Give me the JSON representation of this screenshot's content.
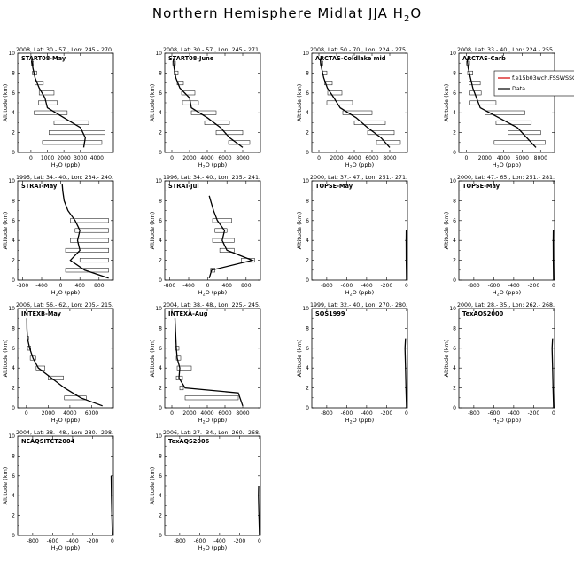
{
  "figure": {
    "title": "Northern Hemisphere Midlat JJA H",
    "title_sub": "2",
    "title_end": "O"
  },
  "chart_data": [
    {
      "type": "line",
      "header": "2008, Lat: 30.- 57., Lon: 245.- 270.",
      "label": "START08-May",
      "xlabel": "H2O (ppb)",
      "ylabel": "Altitude (km)",
      "xlim": [
        -800,
        5000
      ],
      "xticks": [
        0,
        1000,
        2000,
        3000,
        4000
      ],
      "ylim": [
        0,
        10
      ],
      "yticks": [
        0,
        2,
        4,
        6,
        8,
        10
      ],
      "profile": [
        [
          3200,
          0.5
        ],
        [
          3300,
          1.5
        ],
        [
          3000,
          2.5
        ],
        [
          2000,
          3.5
        ],
        [
          1000,
          4.5
        ],
        [
          850,
          5.5
        ],
        [
          500,
          6.5
        ],
        [
          250,
          7.5
        ],
        [
          120,
          8.5
        ],
        [
          40,
          9.5
        ]
      ],
      "boxes": [
        [
          700,
          4300,
          1
        ],
        [
          1100,
          4500,
          2
        ],
        [
          1400,
          3500,
          3
        ],
        [
          200,
          2200,
          4
        ],
        [
          450,
          1600,
          5
        ],
        [
          500,
          1400,
          6
        ],
        [
          250,
          750,
          7
        ],
        [
          100,
          350,
          8
        ],
        [
          20,
          150,
          9
        ]
      ]
    },
    {
      "type": "line",
      "header": "2008, Lat: 30.- 57., Lon: 245.- 271.",
      "label": "START08-June",
      "xlabel": "H2O (ppb)",
      "ylabel": "Altitude (km)",
      "xlim": [
        -800,
        10000
      ],
      "xticks": [
        0,
        2000,
        4000,
        6000,
        8000
      ],
      "ylim": [
        0,
        10
      ],
      "yticks": [
        0,
        2,
        4,
        6,
        8,
        10
      ],
      "profile": [
        [
          8000,
          0.5
        ],
        [
          6500,
          1.5
        ],
        [
          5500,
          2.5
        ],
        [
          4000,
          3.5
        ],
        [
          2200,
          4.5
        ],
        [
          2000,
          5.5
        ],
        [
          900,
          6.5
        ],
        [
          450,
          7.5
        ],
        [
          250,
          8.5
        ],
        [
          150,
          9.5
        ]
      ],
      "boxes": [
        [
          6400,
          8800,
          1
        ],
        [
          5000,
          8000,
          2
        ],
        [
          3700,
          6500,
          3
        ],
        [
          2200,
          5000,
          4
        ],
        [
          1200,
          3000,
          5
        ],
        [
          1100,
          2600,
          6
        ],
        [
          600,
          1300,
          7
        ],
        [
          250,
          700,
          8
        ],
        [
          100,
          400,
          9
        ]
      ]
    },
    {
      "type": "line",
      "header": "2008, Lat: 50.- 70., Lon: 224.- 275",
      "label": "ARCTAS-Coldlake mid",
      "xlabel": "H2O (ppb)",
      "ylabel": "Altitude (km)",
      "xlim": [
        -800,
        10000
      ],
      "xticks": [
        0,
        2000,
        4000,
        6000,
        8000
      ],
      "ylim": [
        0,
        10
      ],
      "yticks": [
        0,
        2,
        4,
        6,
        8,
        10
      ],
      "profile": [
        [
          8000,
          0.5
        ],
        [
          7000,
          1.5
        ],
        [
          5500,
          2.5
        ],
        [
          4200,
          3.5
        ],
        [
          2400,
          4.5
        ],
        [
          1700,
          5.5
        ],
        [
          950,
          6.5
        ],
        [
          550,
          7.5
        ],
        [
          300,
          8.5
        ],
        [
          120,
          9.5
        ]
      ],
      "boxes": [
        [
          6500,
          9200,
          1
        ],
        [
          5500,
          8500,
          2
        ],
        [
          4000,
          7500,
          3
        ],
        [
          2700,
          6000,
          4
        ],
        [
          900,
          3800,
          5
        ],
        [
          1000,
          2600,
          6
        ],
        [
          650,
          1500,
          7
        ],
        [
          350,
          900,
          8
        ],
        [
          150,
          450,
          9
        ]
      ]
    },
    {
      "type": "line",
      "header": "2008, Lat: 33.- 40., Lon: 224.- 255.",
      "label": "ARCTAS-Carb",
      "xlabel": "H2O (ppb)",
      "ylabel": "Altitude (km)",
      "xlim": [
        -800,
        9500
      ],
      "xticks": [
        0,
        2000,
        4000,
        6000,
        8000
      ],
      "ylim": [
        0,
        10
      ],
      "yticks": [
        0,
        2,
        4,
        6,
        8,
        10
      ],
      "legend": [
        "f.e15b03wch.FSSWSSC.f0",
        "Data"
      ],
      "profile": [
        [
          7500,
          0.5
        ],
        [
          6500,
          1.5
        ],
        [
          5500,
          2.5
        ],
        [
          3500,
          3.5
        ],
        [
          1500,
          4.5
        ],
        [
          1100,
          5.5
        ],
        [
          700,
          6.5
        ],
        [
          450,
          7.5
        ],
        [
          200,
          8.5
        ],
        [
          80,
          9.5
        ]
      ],
      "boxes": [
        [
          3000,
          8500,
          1
        ],
        [
          4500,
          8000,
          2
        ],
        [
          3200,
          7000,
          3
        ],
        [
          2000,
          6300,
          4
        ],
        [
          400,
          3200,
          5
        ],
        [
          400,
          1600,
          6
        ],
        [
          300,
          1500,
          7
        ],
        [
          150,
          700,
          8
        ],
        [
          30,
          350,
          9
        ]
      ]
    },
    {
      "type": "line",
      "header": "1995, Lat: 34.- 40., Lon: 234.- 240.",
      "label": "STRAT-May",
      "xlabel": "H2O (ppb)",
      "ylabel": "Altitude (km)",
      "xlim": [
        -900,
        1100
      ],
      "xticks": [
        -800,
        -400,
        0,
        400,
        800
      ],
      "ylim": [
        0,
        10
      ],
      "yticks": [
        0,
        2,
        4,
        6,
        8,
        10
      ],
      "profile": [
        [
          1000,
          0.2
        ],
        [
          500,
          1
        ],
        [
          200,
          2
        ],
        [
          400,
          3
        ],
        [
          350,
          4
        ],
        [
          400,
          5
        ],
        [
          300,
          6
        ],
        [
          150,
          7
        ],
        [
          70,
          8
        ],
        [
          40,
          9
        ],
        [
          30,
          9.7
        ]
      ],
      "boxes": [
        [
          100,
          1000,
          1
        ],
        [
          400,
          1000,
          2
        ],
        [
          100,
          1000,
          3
        ],
        [
          200,
          1000,
          4
        ],
        [
          300,
          1000,
          5
        ],
        [
          200,
          1000,
          6
        ]
      ]
    },
    {
      "type": "line",
      "header": "1996, Lat: 34.- 40., Lon: 235.- 241.",
      "label": "STRAT-Jul",
      "xlabel": "H2O (ppb)",
      "ylabel": "Altitude (km)",
      "xlim": [
        -900,
        1100
      ],
      "xticks": [
        -800,
        -400,
        0,
        400,
        800
      ],
      "ylim": [
        0,
        10
      ],
      "yticks": [
        0,
        2,
        4,
        6,
        8,
        10
      ],
      "profile": [
        [
          30,
          0.2
        ],
        [
          80,
          1
        ],
        [
          930,
          2
        ],
        [
          400,
          3
        ],
        [
          300,
          4
        ],
        [
          350,
          5
        ],
        [
          200,
          6
        ],
        [
          120,
          7
        ],
        [
          60,
          8
        ],
        [
          30,
          8.5
        ]
      ],
      "boxes": [
        [
          60,
          150,
          1
        ],
        [
          700,
          980,
          2
        ],
        [
          250,
          550,
          3
        ],
        [
          100,
          550,
          4
        ],
        [
          150,
          400,
          5
        ],
        [
          100,
          500,
          6
        ]
      ]
    },
    {
      "type": "line",
      "header": "2000, Lat: 37.- 47., Lon: 251.- 271.",
      "label": "TOPSE-May",
      "xlabel": "H2O (ppb)",
      "ylabel": "Altitude (km)",
      "xlim": [
        -950,
        10
      ],
      "xticks": [
        -800,
        -600,
        -400,
        -200,
        0
      ],
      "ylim": [
        0,
        10
      ],
      "yticks": [
        0,
        2,
        4,
        6,
        8,
        10
      ],
      "profile": [
        [
          0,
          0
        ],
        [
          -2,
          2
        ],
        [
          -3,
          4
        ],
        [
          -2,
          5
        ]
      ],
      "boxes": []
    },
    {
      "type": "line",
      "header": "2000, Lat: 47.- 65., Lon: 251.- 281.",
      "label": "TOPSE-May",
      "xlabel": "H2O (ppb)",
      "ylabel": "Altitude (km)",
      "xlim": [
        -950,
        10
      ],
      "xticks": [
        -800,
        -600,
        -400,
        -200,
        0
      ],
      "ylim": [
        0,
        10
      ],
      "yticks": [
        0,
        2,
        4,
        6,
        8,
        10
      ],
      "profile": [
        [
          0,
          0
        ],
        [
          -2,
          2
        ],
        [
          -3,
          4
        ],
        [
          -2,
          5
        ]
      ],
      "boxes": []
    },
    {
      "type": "line",
      "header": "2006, Lat: 56.- 62., Lon: 205.- 215.",
      "label": "INTEXB-May",
      "xlabel": "H2O (ppb)",
      "ylabel": "Altitude (km)",
      "xlim": [
        -800,
        8000
      ],
      "xticks": [
        0,
        2000,
        4000,
        6000
      ],
      "ylim": [
        0,
        10
      ],
      "yticks": [
        0,
        2,
        4,
        6,
        8,
        10
      ],
      "profile": [
        [
          7000,
          0.2
        ],
        [
          5000,
          1
        ],
        [
          3500,
          2
        ],
        [
          2300,
          3
        ],
        [
          1100,
          4
        ],
        [
          600,
          5
        ],
        [
          300,
          6
        ],
        [
          100,
          7
        ],
        [
          50,
          8
        ],
        [
          40,
          9
        ]
      ],
      "boxes": [
        [
          3500,
          5500,
          1
        ],
        [
          2000,
          3400,
          3
        ],
        [
          900,
          1700,
          4
        ],
        [
          350,
          850,
          5
        ],
        [
          100,
          400,
          6
        ],
        [
          50,
          200,
          7
        ]
      ]
    },
    {
      "type": "line",
      "header": "2004, Lat: 38.- 48., Lon: 225.- 245.",
      "label": "INTEXA-Aug",
      "xlabel": "H2O (ppb)",
      "ylabel": "Altitude (km)",
      "xlim": [
        -800,
        10000
      ],
      "xticks": [
        0,
        2000,
        4000,
        6000,
        8000
      ],
      "ylim": [
        0,
        10
      ],
      "yticks": [
        0,
        2,
        4,
        6,
        8,
        10
      ],
      "profile": [
        [
          8000,
          0.2
        ],
        [
          7500,
          1.5
        ],
        [
          1500,
          2
        ],
        [
          800,
          3
        ],
        [
          900,
          4
        ],
        [
          600,
          5
        ],
        [
          500,
          6
        ],
        [
          450,
          7
        ],
        [
          400,
          8
        ],
        [
          350,
          9
        ]
      ],
      "boxes": [
        [
          1500,
          7500,
          1
        ],
        [
          900,
          1300,
          2
        ],
        [
          500,
          1200,
          3
        ],
        [
          600,
          2200,
          4
        ],
        [
          500,
          1000,
          5
        ],
        [
          400,
          800,
          6
        ]
      ]
    },
    {
      "type": "line",
      "header": "1999, Lat: 32.- 40., Lon: 270.- 280.",
      "label": "SOS1999",
      "xlabel": "H2O (ppb)",
      "ylabel": "Altitude (km)",
      "xlim": [
        -950,
        10
      ],
      "xticks": [
        -800,
        -600,
        -400,
        -200,
        0
      ],
      "ylim": [
        0,
        10
      ],
      "yticks": [
        0,
        2,
        4,
        6,
        8,
        10
      ],
      "profile": [
        [
          0,
          0
        ],
        [
          -5,
          2
        ],
        [
          -10,
          4
        ],
        [
          -15,
          6
        ],
        [
          -10,
          7
        ]
      ],
      "boxes": []
    },
    {
      "type": "line",
      "header": "2000, Lat: 28.- 35., Lon: 262.- 268.",
      "label": "TexAQS2000",
      "xlabel": "H2O (ppb)",
      "ylabel": "Altitude (km)",
      "xlim": [
        -950,
        10
      ],
      "xticks": [
        -800,
        -600,
        -400,
        -200,
        0
      ],
      "ylim": [
        0,
        10
      ],
      "yticks": [
        0,
        2,
        4,
        6,
        8,
        10
      ],
      "profile": [
        [
          0,
          0
        ],
        [
          -5,
          2
        ],
        [
          -10,
          4
        ],
        [
          -15,
          6
        ],
        [
          -10,
          7
        ]
      ],
      "boxes": []
    },
    {
      "type": "line",
      "header": "2004, Lat: 38.- 48., Lon: 280.- 298.",
      "label": "NEAQSITCT2004",
      "xlabel": "H2O (ppb)",
      "ylabel": "Altitude (km)",
      "xlim": [
        -950,
        10
      ],
      "xticks": [
        -800,
        -600,
        -400,
        -200,
        0
      ],
      "ylim": [
        0,
        10
      ],
      "yticks": [
        0,
        2,
        4,
        6,
        8,
        10
      ],
      "profile": [
        [
          0,
          0
        ],
        [
          -5,
          2
        ],
        [
          -10,
          4
        ],
        [
          -12,
          6
        ]
      ],
      "boxes": []
    },
    {
      "type": "line",
      "header": "2006, Lat: 27.- 34., Lon: 260.- 268.",
      "label": "TexAQS2006",
      "xlabel": "H2O (ppb)",
      "ylabel": "Altitude (km)",
      "xlim": [
        -950,
        10
      ],
      "xticks": [
        -800,
        -600,
        -400,
        -200,
        0
      ],
      "ylim": [
        0,
        10
      ],
      "yticks": [
        0,
        2,
        4,
        6,
        8,
        10
      ],
      "profile": [
        [
          0,
          0
        ],
        [
          -5,
          2
        ],
        [
          -10,
          4
        ],
        [
          -8,
          5
        ]
      ],
      "boxes": []
    }
  ]
}
